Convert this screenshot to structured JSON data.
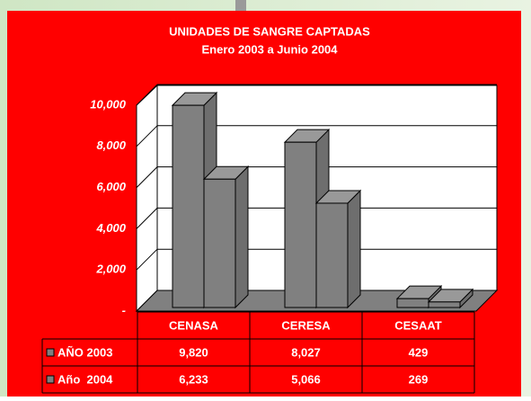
{
  "chart_data": {
    "type": "bar",
    "title": "UNIDADES DE SANGRE CAPTADAS",
    "subtitle": "Enero 2003 a Junio 2004",
    "categories": [
      "CENASA",
      "CERESA",
      "CESAAT"
    ],
    "series": [
      {
        "name": "AÑO 2003",
        "color": "#808080",
        "values": [
          9820,
          8027,
          429
        ],
        "value_labels": [
          "9,820",
          "8,027",
          "429"
        ]
      },
      {
        "name": "Año  2004",
        "color": "#808080",
        "values": [
          6233,
          5066,
          269
        ],
        "value_labels": [
          "6,233",
          "5,066",
          "269"
        ]
      }
    ],
    "ylim": [
      0,
      10000
    ],
    "yticks": [
      {
        "value": 0,
        "label": "-"
      },
      {
        "value": 2000,
        "label": "2,000"
      },
      {
        "value": 4000,
        "label": "4,000"
      },
      {
        "value": 6000,
        "label": "6,000"
      },
      {
        "value": 8000,
        "label": "8,000"
      },
      {
        "value": 10000,
        "label": "10,000"
      }
    ],
    "grid": true
  }
}
